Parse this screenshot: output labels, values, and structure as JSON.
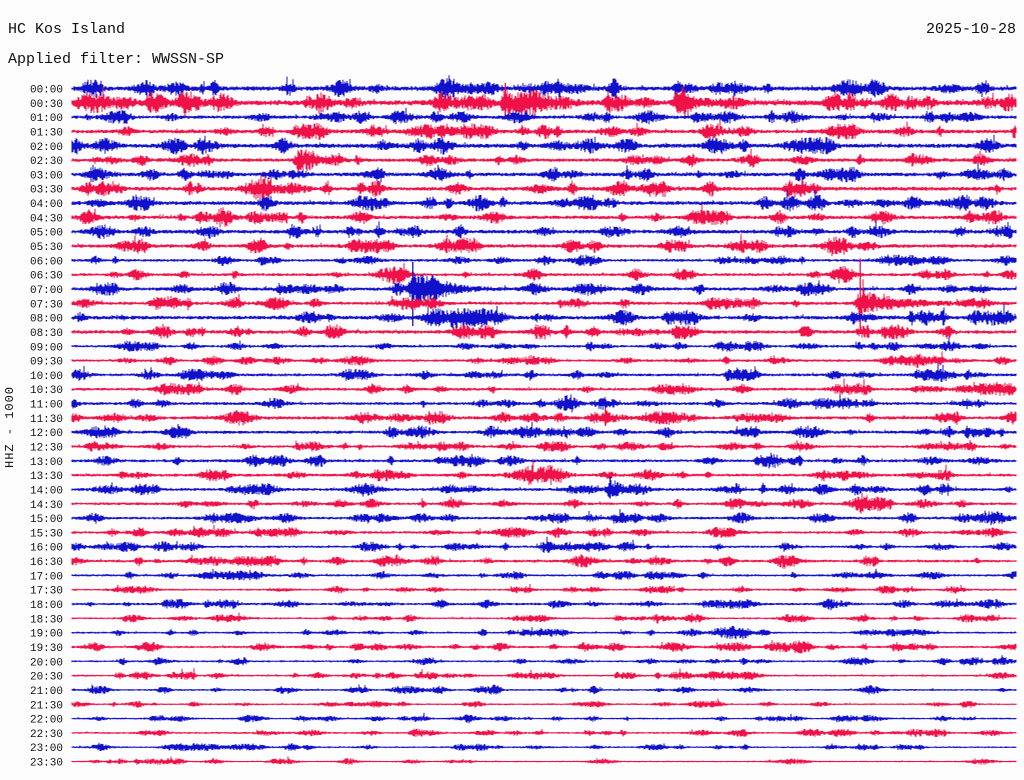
{
  "header": {
    "station": "HC Kos Island",
    "date": "2025-10-28",
    "filter_line": "Applied filter: WWSSN-SP"
  },
  "axis": {
    "channel_label": "HHZ - 1000"
  },
  "chart_data": {
    "type": "line",
    "subtype": "helicorder-seismogram",
    "title": "HC Kos Island",
    "date": "2025-10-28",
    "filter": "WWSSN-SP",
    "channel": "HHZ",
    "gain_label": "1000",
    "minutes_per_row": 30,
    "row_count": 48,
    "legend_position": "none",
    "grid": false,
    "colors": {
      "blue": "#1111cc",
      "red": "#ef1148",
      "background": "#fdfdfd",
      "text": "#111111"
    },
    "note_events": "t = fraction of the 30-minute row, a = half-amplitude px, w = spindle width px, d = coda decay px, s = onset spike [up,down] px",
    "rows": [
      {
        "label": "00:00",
        "noise": 2.2,
        "events": [
          {
            "t": 0.405,
            "a": 4,
            "w": 8
          },
          {
            "t": 0.424,
            "a": 4,
            "w": 8
          },
          {
            "t": 0.443,
            "a": 5,
            "w": 10
          },
          {
            "t": 0.485,
            "a": 3,
            "w": 8
          },
          {
            "t": 0.532,
            "a": 4,
            "w": 14
          },
          {
            "t": 0.575,
            "a": 3,
            "w": 8
          },
          {
            "t": 0.93,
            "a": 4,
            "w": 10
          }
        ]
      },
      {
        "label": "00:30",
        "noise": 2.6,
        "events": [
          {
            "t": 0.012,
            "a": 5,
            "w": 10
          },
          {
            "t": 0.032,
            "a": 6,
            "w": 12
          },
          {
            "t": 0.056,
            "a": 5,
            "w": 10
          },
          {
            "t": 0.115,
            "a": 4,
            "w": 8
          },
          {
            "t": 0.42,
            "a": 5,
            "w": 8
          },
          {
            "t": 0.437,
            "a": 6,
            "w": 8
          },
          {
            "t": 0.459,
            "a": 12,
            "w": 6,
            "d": 18,
            "s": [
              20,
              13
            ]
          },
          {
            "t": 0.641,
            "a": 9,
            "w": 6,
            "d": 22,
            "s": [
              11,
              9
            ]
          },
          {
            "t": 0.7,
            "a": 4,
            "w": 10
          },
          {
            "t": 0.97,
            "a": 4,
            "w": 10
          }
        ]
      },
      {
        "label": "01:00",
        "noise": 1.7,
        "events": [
          {
            "t": 0.2,
            "a": 3,
            "w": 10
          },
          {
            "t": 0.55,
            "a": 3,
            "w": 10
          },
          {
            "t": 0.567,
            "a": 5,
            "w": 4
          }
        ]
      },
      {
        "label": "01:30",
        "noise": 1.9,
        "events": [
          {
            "t": 0.058,
            "a": 4,
            "w": 7
          },
          {
            "t": 0.162,
            "a": 3,
            "w": 8
          },
          {
            "t": 0.262,
            "a": 5,
            "w": 5
          },
          {
            "t": 0.4,
            "a": 3,
            "w": 8
          },
          {
            "t": 0.6,
            "a": 4,
            "w": 8
          },
          {
            "t": 0.998,
            "a": 8,
            "w": 2
          }
        ]
      },
      {
        "label": "02:00",
        "noise": 2.1,
        "events": [
          {
            "t": 0.004,
            "a": 7,
            "w": 6
          },
          {
            "t": 0.146,
            "a": 4,
            "w": 10
          },
          {
            "t": 0.39,
            "a": 4,
            "w": 8
          },
          {
            "t": 0.58,
            "a": 3,
            "w": 8
          }
        ]
      },
      {
        "label": "02:30",
        "noise": 1.8,
        "events": [
          {
            "t": 0.241,
            "a": 6,
            "w": 10,
            "d": 14,
            "s": [
              7,
              6
            ]
          },
          {
            "t": 0.278,
            "a": 4,
            "w": 10
          },
          {
            "t": 0.47,
            "a": 3,
            "w": 8
          },
          {
            "t": 0.62,
            "a": 3,
            "w": 8
          }
        ]
      },
      {
        "label": "03:00",
        "noise": 1.9,
        "events": [
          {
            "t": 0.12,
            "a": 5,
            "w": 5
          },
          {
            "t": 0.24,
            "a": 3,
            "w": 8
          },
          {
            "t": 0.53,
            "a": 3,
            "w": 8
          },
          {
            "t": 0.7,
            "a": 3,
            "w": 8
          }
        ]
      },
      {
        "label": "03:30",
        "noise": 2.0,
        "events": [
          {
            "t": 0.197,
            "a": 6,
            "w": 16
          },
          {
            "t": 0.228,
            "a": 4,
            "w": 10
          },
          {
            "t": 0.77,
            "a": 4,
            "w": 10
          }
        ]
      },
      {
        "label": "04:00",
        "noise": 2.0,
        "events": [
          {
            "t": 0.33,
            "a": 3,
            "w": 8
          },
          {
            "t": 0.52,
            "a": 3,
            "w": 8
          },
          {
            "t": 0.86,
            "a": 3,
            "w": 10
          }
        ]
      },
      {
        "label": "04:30",
        "noise": 1.8,
        "events": [
          {
            "t": 0.162,
            "a": 5,
            "w": 10
          },
          {
            "t": 0.45,
            "a": 3,
            "w": 8
          },
          {
            "t": 0.79,
            "a": 3,
            "w": 8
          }
        ]
      },
      {
        "label": "05:00",
        "noise": 1.9,
        "events": [
          {
            "t": 0.24,
            "a": 3,
            "w": 8
          },
          {
            "t": 0.5,
            "a": 3,
            "w": 8
          },
          {
            "t": 0.58,
            "a": 3,
            "w": 8
          }
        ]
      },
      {
        "label": "05:30",
        "noise": 1.8,
        "events": [
          {
            "t": 0.055,
            "a": 3,
            "w": 8
          },
          {
            "t": 0.42,
            "a": 3,
            "w": 8
          },
          {
            "t": 0.81,
            "a": 6,
            "w": 14
          },
          {
            "t": 0.843,
            "a": 4,
            "w": 8
          }
        ]
      },
      {
        "label": "06:00",
        "noise": 1.4,
        "events": [
          {
            "t": 0.41,
            "a": 3,
            "w": 10
          },
          {
            "t": 0.455,
            "a": 3,
            "w": 8
          }
        ]
      },
      {
        "label": "06:30",
        "noise": 1.5,
        "events": [
          {
            "t": 0.345,
            "a": 4,
            "w": 12
          },
          {
            "t": 0.6,
            "a": 3,
            "w": 8
          },
          {
            "t": 0.818,
            "a": 4,
            "w": 12
          }
        ]
      },
      {
        "label": "07:00",
        "noise": 1.7,
        "events": [
          {
            "t": 0.25,
            "a": 4,
            "w": 10
          },
          {
            "t": 0.277,
            "a": 4,
            "w": 8
          },
          {
            "t": 0.361,
            "a": 14,
            "w": 6,
            "d": 28,
            "s": [
              27,
              37
            ]
          },
          {
            "t": 0.56,
            "a": 3,
            "w": 8
          },
          {
            "t": 0.93,
            "a": 3,
            "w": 8
          }
        ]
      },
      {
        "label": "07:30",
        "noise": 1.6,
        "events": [
          {
            "t": 0.11,
            "a": 3,
            "w": 8
          },
          {
            "t": 0.17,
            "a": 3,
            "w": 8
          },
          {
            "t": 0.835,
            "a": 13,
            "w": 6,
            "d": 36,
            "s": [
              45,
              27
            ]
          },
          {
            "t": 0.95,
            "a": 3,
            "w": 8
          }
        ]
      },
      {
        "label": "08:00",
        "noise": 1.9,
        "events": [
          {
            "t": 0.39,
            "a": 4,
            "w": 10
          },
          {
            "t": 0.421,
            "a": 5,
            "w": 20
          },
          {
            "t": 0.449,
            "a": 5,
            "w": 12
          },
          {
            "t": 0.72,
            "a": 3,
            "w": 8
          }
        ]
      },
      {
        "label": "08:30",
        "noise": 1.8,
        "events": [
          {
            "t": 0.1,
            "a": 3,
            "w": 8
          },
          {
            "t": 0.6,
            "a": 3,
            "w": 8
          },
          {
            "t": 0.88,
            "a": 3,
            "w": 8
          }
        ]
      },
      {
        "label": "09:00",
        "noise": 1.3,
        "events": [
          {
            "t": 0.33,
            "a": 2.5,
            "w": 8
          },
          {
            "t": 0.62,
            "a": 2.5,
            "w": 8
          }
        ]
      },
      {
        "label": "09:30",
        "noise": 1.3,
        "events": [
          {
            "t": 0.505,
            "a": 3,
            "w": 6
          },
          {
            "t": 0.9,
            "a": 2.5,
            "w": 8
          }
        ]
      },
      {
        "label": "10:00",
        "noise": 1.5,
        "events": [
          {
            "t": 0.448,
            "a": 3,
            "w": 8
          },
          {
            "t": 0.808,
            "a": 4,
            "w": 6
          },
          {
            "t": 0.93,
            "a": 3,
            "w": 8
          }
        ]
      },
      {
        "label": "10:30",
        "noise": 1.5,
        "events": [
          {
            "t": 0.32,
            "a": 3,
            "w": 8
          },
          {
            "t": 0.644,
            "a": 5,
            "w": 14
          },
          {
            "t": 0.99,
            "a": 4,
            "w": 6
          }
        ]
      },
      {
        "label": "11:00",
        "noise": 1.5,
        "events": [
          {
            "t": 0.46,
            "a": 3,
            "w": 10
          },
          {
            "t": 0.53,
            "a": 3,
            "w": 10
          },
          {
            "t": 0.56,
            "a": 3,
            "w": 8
          }
        ]
      },
      {
        "label": "11:30",
        "noise": 1.7,
        "events": [
          {
            "t": 0.173,
            "a": 5,
            "w": 12
          },
          {
            "t": 0.348,
            "a": 4,
            "w": 12
          },
          {
            "t": 0.565,
            "a": 7,
            "w": 6,
            "d": 12,
            "s": [
              10,
              8
            ]
          },
          {
            "t": 0.71,
            "a": 3,
            "w": 8
          }
        ]
      },
      {
        "label": "12:00",
        "noise": 1.6,
        "events": [
          {
            "t": 0.36,
            "a": 3,
            "w": 10
          },
          {
            "t": 0.51,
            "a": 3,
            "w": 10
          },
          {
            "t": 0.957,
            "a": 4,
            "w": 10
          }
        ]
      },
      {
        "label": "12:30",
        "noise": 1.3,
        "events": [
          {
            "t": 0.5,
            "a": 3,
            "w": 6
          },
          {
            "t": 0.628,
            "a": 3,
            "w": 8
          }
        ]
      },
      {
        "label": "13:00",
        "noise": 1.5,
        "events": [
          {
            "t": 0.035,
            "a": 4,
            "w": 10
          },
          {
            "t": 0.43,
            "a": 3,
            "w": 8
          },
          {
            "t": 0.74,
            "a": 3,
            "w": 8
          }
        ]
      },
      {
        "label": "13:30",
        "noise": 1.5,
        "events": [
          {
            "t": 0.155,
            "a": 3,
            "w": 8
          },
          {
            "t": 0.49,
            "a": 7,
            "w": 22
          },
          {
            "t": 0.512,
            "a": 6,
            "w": 10
          }
        ]
      },
      {
        "label": "14:00",
        "noise": 1.5,
        "events": [
          {
            "t": 0.3,
            "a": 2.5,
            "w": 8
          },
          {
            "t": 0.57,
            "a": 8,
            "w": 6,
            "d": 14,
            "s": [
              13,
              9
            ]
          },
          {
            "t": 0.6,
            "a": 4,
            "w": 10
          }
        ]
      },
      {
        "label": "14:30",
        "noise": 1.4,
        "events": [
          {
            "t": 0.4,
            "a": 2.5,
            "w": 8
          },
          {
            "t": 0.838,
            "a": 6,
            "w": 14
          },
          {
            "t": 0.856,
            "a": 5,
            "w": 8
          }
        ]
      },
      {
        "label": "15:00",
        "noise": 1.4,
        "events": [
          {
            "t": 0.4,
            "a": 3,
            "w": 8
          },
          {
            "t": 0.55,
            "a": 3,
            "w": 8
          },
          {
            "t": 0.975,
            "a": 6,
            "w": 16
          }
        ]
      },
      {
        "label": "15:30",
        "noise": 1.3,
        "events": [
          {
            "t": 0.48,
            "a": 2.5,
            "w": 8
          },
          {
            "t": 0.83,
            "a": 2.5,
            "w": 8
          }
        ]
      },
      {
        "label": "16:00",
        "noise": 1.2,
        "events": [
          {
            "t": 0.095,
            "a": 3,
            "w": 8
          },
          {
            "t": 0.5,
            "a": 2.5,
            "w": 6
          }
        ]
      },
      {
        "label": "16:30",
        "noise": 1.4,
        "events": [
          {
            "t": 0.13,
            "a": 2.5,
            "w": 8
          },
          {
            "t": 0.545,
            "a": 3,
            "w": 14
          },
          {
            "t": 0.75,
            "a": 2.5,
            "w": 8
          }
        ]
      },
      {
        "label": "17:00",
        "noise": 1.2,
        "events": [
          {
            "t": 0.24,
            "a": 2.5,
            "w": 8
          },
          {
            "t": 0.64,
            "a": 2.5,
            "w": 8
          }
        ]
      },
      {
        "label": "17:30",
        "noise": 1.0,
        "events": [
          {
            "t": 0.47,
            "a": 2.5,
            "w": 6
          },
          {
            "t": 0.77,
            "a": 2,
            "w": 6
          }
        ]
      },
      {
        "label": "18:00",
        "noise": 1.2,
        "events": [
          {
            "t": 0.52,
            "a": 2,
            "w": 8
          },
          {
            "t": 0.8,
            "a": 2,
            "w": 8
          }
        ]
      },
      {
        "label": "18:30",
        "noise": 1.0,
        "events": [
          {
            "t": 0.33,
            "a": 2,
            "w": 6
          },
          {
            "t": 0.62,
            "a": 2,
            "w": 6
          }
        ]
      },
      {
        "label": "19:00",
        "noise": 1.0,
        "events": [
          {
            "t": 0.704,
            "a": 5,
            "w": 12
          },
          {
            "t": 0.732,
            "a": 3,
            "w": 6
          }
        ]
      },
      {
        "label": "19:30",
        "noise": 1.2,
        "events": [
          {
            "t": 0.25,
            "a": 2,
            "w": 8
          },
          {
            "t": 0.55,
            "a": 2,
            "w": 8
          },
          {
            "t": 0.77,
            "a": 2,
            "w": 8
          }
        ]
      },
      {
        "label": "20:00",
        "noise": 1.0,
        "events": [
          {
            "t": 0.3,
            "a": 2,
            "w": 6
          },
          {
            "t": 0.68,
            "a": 2,
            "w": 6
          }
        ]
      },
      {
        "label": "20:30",
        "noise": 1.0,
        "events": [
          {
            "t": 0.4,
            "a": 2,
            "w": 6
          },
          {
            "t": 0.694,
            "a": 4,
            "w": 12
          }
        ]
      },
      {
        "label": "21:00",
        "noise": 1.0,
        "events": [
          {
            "t": 0.45,
            "a": 2,
            "w": 6
          },
          {
            "t": 0.847,
            "a": 4,
            "w": 10
          }
        ]
      },
      {
        "label": "21:30",
        "noise": 0.9,
        "events": [
          {
            "t": 0.35,
            "a": 2,
            "w": 6
          },
          {
            "t": 0.66,
            "a": 2,
            "w": 6
          }
        ]
      },
      {
        "label": "22:00",
        "noise": 0.9,
        "events": [
          {
            "t": 0.42,
            "a": 2,
            "w": 6
          },
          {
            "t": 0.74,
            "a": 2,
            "w": 6
          }
        ]
      },
      {
        "label": "22:30",
        "noise": 1.0,
        "events": [
          {
            "t": 0.47,
            "a": 2,
            "w": 6
          },
          {
            "t": 0.85,
            "a": 2,
            "w": 6
          }
        ]
      },
      {
        "label": "23:00",
        "noise": 0.9,
        "events": [
          {
            "t": 0.118,
            "a": 2.5,
            "w": 8
          },
          {
            "t": 0.152,
            "a": 2,
            "w": 6
          },
          {
            "t": 0.234,
            "a": 2,
            "w": 6
          },
          {
            "t": 0.412,
            "a": 2.5,
            "w": 8
          }
        ]
      },
      {
        "label": "23:30",
        "noise": 0.8,
        "events": [
          {
            "t": 0.42,
            "a": 1.5,
            "w": 6
          }
        ]
      }
    ]
  }
}
